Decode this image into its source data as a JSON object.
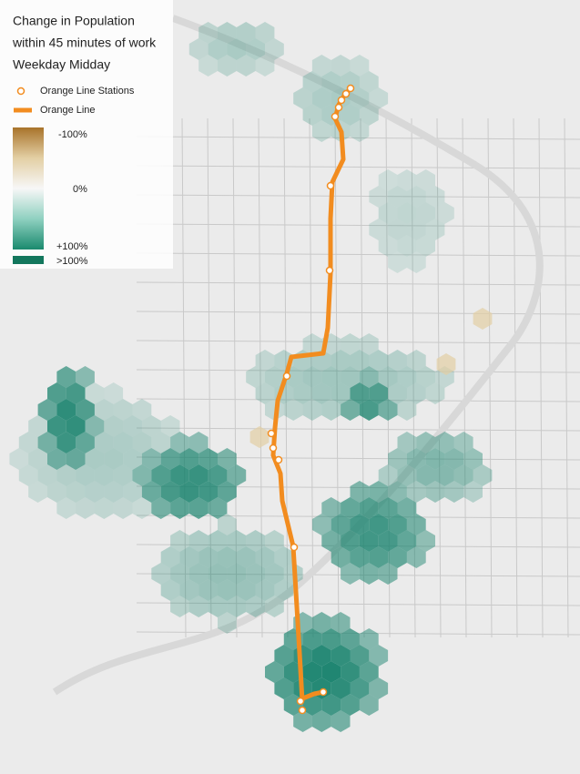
{
  "legend": {
    "title": [
      "Change in Population",
      "within 45 minutes of work",
      "Weekday Midday"
    ],
    "items": [
      "Orange Line Stations",
      "Orange Line"
    ],
    "scale": [
      "-100%",
      "0%",
      "+100%",
      ">100%"
    ]
  }
}
